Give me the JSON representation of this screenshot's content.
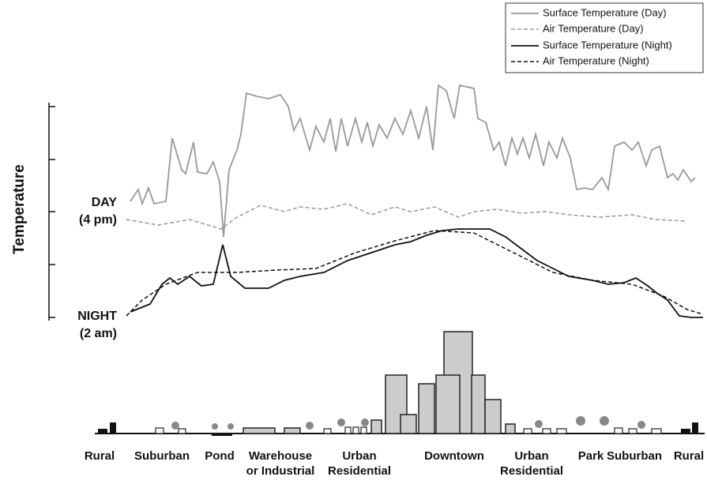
{
  "legend": [
    "Surface Temperature (Day)",
    "Air Temperature (Day)",
    "Surface Temperature (Night)",
    "Air Temperature (Night)"
  ],
  "y_axis_label": "Temperature",
  "day_label": [
    "DAY",
    "(4 pm)"
  ],
  "night_label": [
    "NIGHT",
    "(2 am)"
  ],
  "zones": [
    [
      "Rural"
    ],
    [
      "Suburban"
    ],
    [
      "Pond"
    ],
    [
      "Warehouse",
      "or Industrial"
    ],
    [
      "Urban",
      "Residential"
    ],
    [
      "Downtown"
    ],
    [
      "Urban",
      "Residential"
    ],
    [
      "Park"
    ],
    [
      "Suburban"
    ],
    [
      "Rural"
    ]
  ]
}
